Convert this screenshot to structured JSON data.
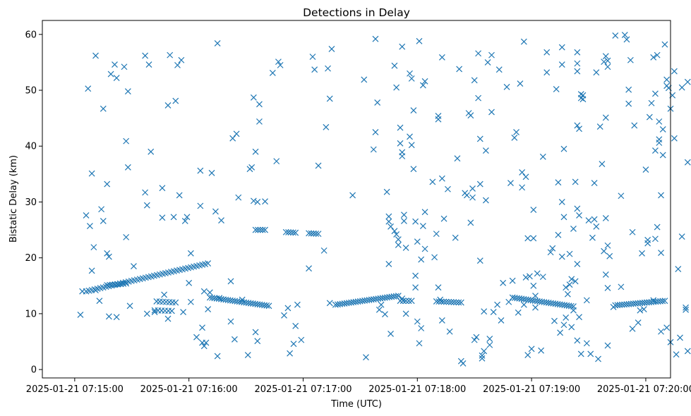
{
  "colors": {
    "series": "#1f77b4",
    "axis": "#000000",
    "background": "#ffffff"
  },
  "chart_data": {
    "type": "scatter",
    "marker": "x",
    "title": "Detections in Delay",
    "xlabel": "Time (UTC)",
    "ylabel": "Bistatic Delay (km)",
    "x_unit": "seconds after 2025-01-21 07:15:00",
    "xlim": [
      -17,
      313
    ],
    "ylim": [
      -1.5,
      62.5
    ],
    "xticks": [
      0,
      60,
      120,
      180,
      240,
      300
    ],
    "xtick_labels": [
      "2025-01-21 07:15:00",
      "2025-01-21 07:16:00",
      "2025-01-21 07:17:00",
      "2025-01-21 07:18:00",
      "2025-01-21 07:19:00",
      "2025-01-21 07:20:00"
    ],
    "yticks": [
      0,
      10,
      20,
      30,
      40,
      50,
      60
    ],
    "ytick_labels": [
      "0",
      "10",
      "20",
      "30",
      "40",
      "50",
      "60"
    ],
    "grid": false,
    "tracks": [
      {
        "t_start": 6,
        "t_end": 70,
        "d_start": 14.0,
        "d_end": 19.0,
        "step": 1.5
      },
      {
        "t_start": 71,
        "t_end": 102,
        "d_start": 12.9,
        "d_end": 11.4,
        "step": 1.2
      },
      {
        "t_start": 95,
        "t_end": 100,
        "d_start": 25.0,
        "d_end": 25.0,
        "step": 1.4
      },
      {
        "t_start": 111,
        "t_end": 116,
        "d_start": 24.6,
        "d_end": 24.5,
        "step": 1.4
      },
      {
        "t_start": 123,
        "t_end": 128,
        "d_start": 24.4,
        "d_end": 24.3,
        "step": 1.4
      },
      {
        "t_start": 137,
        "t_end": 170,
        "d_start": 11.6,
        "d_end": 13.2,
        "step": 1.2
      },
      {
        "t_start": 171,
        "t_end": 177,
        "d_start": 12.3,
        "d_end": 12.3,
        "step": 1.5
      },
      {
        "t_start": 190,
        "t_end": 203,
        "d_start": 12.2,
        "d_end": 12.0,
        "step": 1.3
      },
      {
        "t_start": 230,
        "t_end": 262,
        "d_start": 12.9,
        "d_end": 11.3,
        "step": 1.2
      },
      {
        "t_start": 284,
        "t_end": 310,
        "d_start": 11.5,
        "d_end": 12.3,
        "step": 1.2
      },
      {
        "t_start": 17,
        "t_end": 27,
        "d_start": 15.1,
        "d_end": 15.4,
        "step": 1.5
      },
      {
        "t_start": 43,
        "t_end": 53,
        "d_start": 12.2,
        "d_end": 12.0,
        "step": 1.6
      },
      {
        "t_start": 42,
        "t_end": 51,
        "d_start": 10.6,
        "d_end": 10.5,
        "step": 1.8
      }
    ],
    "points": [
      [
        3,
        9.8
      ],
      [
        4,
        14.0
      ],
      [
        6,
        27.6
      ],
      [
        7,
        50.3
      ],
      [
        8,
        25.7
      ],
      [
        9,
        35.1
      ],
      [
        9,
        17.7
      ],
      [
        10,
        21.9
      ],
      [
        11,
        56.2
      ],
      [
        11,
        14.2
      ],
      [
        13,
        12.3
      ],
      [
        14,
        28.7
      ],
      [
        15,
        46.7
      ],
      [
        15,
        26.6
      ],
      [
        17,
        33.2
      ],
      [
        17,
        20.8
      ],
      [
        18,
        20.2
      ],
      [
        18,
        9.5
      ],
      [
        19,
        52.9
      ],
      [
        21,
        54.6
      ],
      [
        22,
        52.2
      ],
      [
        22,
        9.4
      ],
      [
        26,
        54.2
      ],
      [
        27,
        23.7
      ],
      [
        27,
        40.9
      ],
      [
        28,
        49.8
      ],
      [
        28,
        36.2
      ],
      [
        29,
        11.4
      ],
      [
        31,
        18.5
      ],
      [
        37,
        56.2
      ],
      [
        37,
        31.7
      ],
      [
        38,
        29.4
      ],
      [
        38,
        10.0
      ],
      [
        39,
        54.6
      ],
      [
        40,
        39.0
      ],
      [
        42,
        10.3
      ],
      [
        46,
        27.2
      ],
      [
        46,
        32.5
      ],
      [
        47,
        13.4
      ],
      [
        49,
        47.3
      ],
      [
        50,
        56.3
      ],
      [
        49,
        9.1
      ],
      [
        52,
        27.3
      ],
      [
        53,
        48.1
      ],
      [
        54,
        54.5
      ],
      [
        55,
        31.2
      ],
      [
        56,
        55.4
      ],
      [
        57,
        10.3
      ],
      [
        58,
        26.6
      ],
      [
        59,
        27.3
      ],
      [
        60,
        15.5
      ],
      [
        61,
        20.8
      ],
      [
        61,
        12.1
      ],
      [
        64,
        5.8
      ],
      [
        66,
        35.6
      ],
      [
        66,
        29.3
      ],
      [
        67,
        7.5
      ],
      [
        67,
        4.8
      ],
      [
        68,
        4.2
      ],
      [
        68,
        14.0
      ],
      [
        69,
        4.8
      ],
      [
        70,
        10.8
      ],
      [
        71,
        13.8
      ],
      [
        72,
        35.2
      ],
      [
        74,
        28.3
      ],
      [
        75,
        2.4
      ],
      [
        75,
        58.4
      ],
      [
        76,
        12.8
      ],
      [
        77,
        26.7
      ],
      [
        82,
        8.6
      ],
      [
        82,
        15.8
      ],
      [
        83,
        41.4
      ],
      [
        84,
        5.4
      ],
      [
        85,
        42.2
      ],
      [
        86,
        30.8
      ],
      [
        88,
        12.5
      ],
      [
        91,
        2.6
      ],
      [
        92,
        35.9
      ],
      [
        93,
        36.2
      ],
      [
        94,
        48.7
      ],
      [
        94,
        30.2
      ],
      [
        95,
        39.0
      ],
      [
        95,
        6.7
      ],
      [
        96,
        30.0
      ],
      [
        96,
        5.1
      ],
      [
        97,
        44.4
      ],
      [
        97,
        47.5
      ],
      [
        100,
        30.1
      ],
      [
        104,
        53.1
      ],
      [
        106,
        37.3
      ],
      [
        107,
        55.1
      ],
      [
        108,
        54.5
      ],
      [
        110,
        9.7
      ],
      [
        112,
        11.0
      ],
      [
        113,
        2.9
      ],
      [
        115,
        4.6
      ],
      [
        116,
        7.8
      ],
      [
        117,
        11.6
      ],
      [
        119,
        5.3
      ],
      [
        123,
        18.1
      ],
      [
        125,
        56.0
      ],
      [
        126,
        53.7
      ],
      [
        128,
        36.5
      ],
      [
        131,
        21.3
      ],
      [
        132,
        43.4
      ],
      [
        133,
        53.9
      ],
      [
        134,
        11.9
      ],
      [
        134,
        48.5
      ],
      [
        135,
        57.4
      ],
      [
        146,
        31.2
      ],
      [
        152,
        51.9
      ],
      [
        153,
        2.2
      ],
      [
        157,
        39.4
      ],
      [
        158,
        42.5
      ],
      [
        158,
        59.2
      ],
      [
        159,
        47.8
      ],
      [
        160,
        10.7
      ],
      [
        161,
        11.6
      ],
      [
        163,
        9.9
      ],
      [
        164,
        31.8
      ],
      [
        165,
        27.4
      ],
      [
        165,
        26.5
      ],
      [
        166,
        25.6
      ],
      [
        165,
        18.9
      ],
      [
        166,
        6.4
      ],
      [
        168,
        54.4
      ],
      [
        168,
        24.8
      ],
      [
        169,
        50.5
      ],
      [
        169,
        24.2
      ],
      [
        170,
        23.3
      ],
      [
        170,
        22.3
      ],
      [
        171,
        43.3
      ],
      [
        171,
        40.5
      ],
      [
        172,
        57.8
      ],
      [
        172,
        38.9
      ],
      [
        172,
        38.2
      ],
      [
        172,
        12.7
      ],
      [
        173,
        27.7
      ],
      [
        173,
        26.6
      ],
      [
        174,
        21.8
      ],
      [
        174,
        10.0
      ],
      [
        176,
        41.7
      ],
      [
        176,
        53.0
      ],
      [
        177,
        52.1
      ],
      [
        177,
        40.2
      ],
      [
        178,
        35.9
      ],
      [
        178,
        46.4
      ],
      [
        179,
        16.8
      ],
      [
        179,
        14.7
      ],
      [
        179,
        26.5
      ],
      [
        180,
        22.9
      ],
      [
        180,
        8.6
      ],
      [
        181,
        58.8
      ],
      [
        181,
        4.7
      ],
      [
        182,
        7.4
      ],
      [
        182,
        19.7
      ],
      [
        183,
        25.7
      ],
      [
        183,
        50.9
      ],
      [
        184,
        51.6
      ],
      [
        184,
        28.2
      ],
      [
        184,
        21.6
      ],
      [
        188,
        33.6
      ],
      [
        189,
        20.1
      ],
      [
        190,
        24.3
      ],
      [
        191,
        45.4
      ],
      [
        191,
        44.8
      ],
      [
        191,
        14.7
      ],
      [
        192,
        12.5
      ],
      [
        193,
        55.9
      ],
      [
        193,
        8.8
      ],
      [
        193,
        34.2
      ],
      [
        194,
        27.0
      ],
      [
        196,
        32.3
      ],
      [
        197,
        6.8
      ],
      [
        200,
        23.6
      ],
      [
        201,
        37.8
      ],
      [
        202,
        53.8
      ],
      [
        203,
        1.5
      ],
      [
        204,
        1.1
      ],
      [
        205,
        31.6
      ],
      [
        206,
        31.2
      ],
      [
        207,
        45.9
      ],
      [
        208,
        26.3
      ],
      [
        208,
        45.5
      ],
      [
        209,
        32.4
      ],
      [
        209,
        30.8
      ],
      [
        210,
        51.8
      ],
      [
        210,
        5.3
      ],
      [
        211,
        5.8
      ],
      [
        212,
        48.6
      ],
      [
        212,
        56.6
      ],
      [
        213,
        41.3
      ],
      [
        213,
        33.2
      ],
      [
        213,
        19.5
      ],
      [
        214,
        2.5
      ],
      [
        214,
        2.0
      ],
      [
        215,
        3.3
      ],
      [
        215,
        10.4
      ],
      [
        216,
        39.2
      ],
      [
        216,
        30.3
      ],
      [
        217,
        55.0
      ],
      [
        218,
        5.5
      ],
      [
        218,
        4.4
      ],
      [
        219,
        56.3
      ],
      [
        219,
        46.1
      ],
      [
        220,
        10.3
      ],
      [
        222,
        11.6
      ],
      [
        223,
        53.7
      ],
      [
        224,
        8.8
      ],
      [
        225,
        15.5
      ],
      [
        227,
        50.6
      ],
      [
        228,
        12.1
      ],
      [
        229,
        33.4
      ],
      [
        230,
        15.9
      ],
      [
        231,
        41.5
      ],
      [
        232,
        42.5
      ],
      [
        233,
        10.2
      ],
      [
        234,
        51.2
      ],
      [
        235,
        32.6
      ],
      [
        235,
        35.3
      ],
      [
        236,
        58.7
      ],
      [
        236,
        11.6
      ],
      [
        237,
        34.5
      ],
      [
        237,
        16.5
      ],
      [
        238,
        23.5
      ],
      [
        238,
        2.6
      ],
      [
        239,
        16.7
      ],
      [
        240,
        3.7
      ],
      [
        241,
        28.6
      ],
      [
        241,
        15.0
      ],
      [
        241,
        23.5
      ],
      [
        242,
        13.2
      ],
      [
        242,
        11.1
      ],
      [
        243,
        17.2
      ],
      [
        245,
        3.4
      ],
      [
        246,
        38.1
      ],
      [
        246,
        16.6
      ],
      [
        248,
        56.8
      ],
      [
        248,
        53.2
      ],
      [
        250,
        21.0
      ],
      [
        251,
        21.7
      ],
      [
        252,
        8.7
      ],
      [
        253,
        50.2
      ],
      [
        254,
        24.1
      ],
      [
        254,
        33.5
      ],
      [
        255,
        6.6
      ],
      [
        256,
        57.7
      ],
      [
        256,
        54.6
      ],
      [
        256,
        30.0
      ],
      [
        256,
        20.2
      ],
      [
        257,
        8.0
      ],
      [
        257,
        39.5
      ],
      [
        257,
        27.3
      ],
      [
        258,
        14.7
      ],
      [
        258,
        9.3
      ],
      [
        259,
        13.5
      ],
      [
        260,
        15.2
      ],
      [
        260,
        20.7
      ],
      [
        261,
        16.2
      ],
      [
        261,
        7.6
      ],
      [
        262,
        10.6
      ],
      [
        262,
        25.2
      ],
      [
        263,
        33.6
      ],
      [
        263,
        15.8
      ],
      [
        264,
        56.8
      ],
      [
        264,
        54.8
      ],
      [
        264,
        53.4
      ],
      [
        264,
        43.7
      ],
      [
        264,
        28.8
      ],
      [
        264,
        18.9
      ],
      [
        264,
        5.2
      ],
      [
        265,
        43.1
      ],
      [
        265,
        9.4
      ],
      [
        265,
        27.6
      ],
      [
        266,
        49.3
      ],
      [
        266,
        48.6
      ],
      [
        266,
        2.8
      ],
      [
        267,
        48.4
      ],
      [
        267,
        49.1
      ],
      [
        269,
        12.4
      ],
      [
        269,
        4.7
      ],
      [
        270,
        26.7
      ],
      [
        271,
        2.8
      ],
      [
        272,
        23.6
      ],
      [
        273,
        26.9
      ],
      [
        273,
        33.4
      ],
      [
        274,
        53.2
      ],
      [
        274,
        25.6
      ],
      [
        275,
        1.9
      ],
      [
        276,
        43.5
      ],
      [
        277,
        36.8
      ],
      [
        278,
        55.1
      ],
      [
        278,
        21.2
      ],
      [
        279,
        56.1
      ],
      [
        279,
        45.1
      ],
      [
        279,
        27.1
      ],
      [
        279,
        17.0
      ],
      [
        280,
        14.6
      ],
      [
        280,
        22.2
      ],
      [
        280,
        55.3
      ],
      [
        280,
        54.2
      ],
      [
        280,
        4.3
      ],
      [
        281,
        20.3
      ],
      [
        283,
        11.2
      ],
      [
        284,
        59.8
      ],
      [
        287,
        31.1
      ],
      [
        287,
        14.8
      ],
      [
        289,
        59.9
      ],
      [
        290,
        59.1
      ],
      [
        291,
        50.1
      ],
      [
        291,
        47.6
      ],
      [
        292,
        55.4
      ],
      [
        293,
        24.6
      ],
      [
        293,
        7.3
      ],
      [
        294,
        43.7
      ],
      [
        296,
        8.4
      ],
      [
        297,
        10.6
      ],
      [
        298,
        20.8
      ],
      [
        299,
        10.8
      ],
      [
        300,
        35.8
      ],
      [
        301,
        23.2
      ],
      [
        301,
        22.6
      ],
      [
        302,
        45.2
      ],
      [
        303,
        47.7
      ],
      [
        304,
        55.9
      ],
      [
        304,
        12.4
      ],
      [
        305,
        49.4
      ],
      [
        305,
        39.2
      ],
      [
        305,
        23.4
      ],
      [
        306,
        25.5
      ],
      [
        306,
        56.3
      ],
      [
        307,
        41.2
      ],
      [
        307,
        44.4
      ],
      [
        307,
        40.6
      ],
      [
        308,
        20.9
      ],
      [
        308,
        6.8
      ],
      [
        308,
        31.2
      ],
      [
        309,
        43.0
      ],
      [
        309,
        38.4
      ],
      [
        310,
        58.2
      ],
      [
        311,
        51.9
      ],
      [
        311,
        50.8
      ],
      [
        311,
        7.5
      ],
      [
        312,
        50.4
      ],
      [
        313,
        46.7
      ],
      [
        313,
        4.9
      ],
      [
        314,
        49.1
      ],
      [
        315,
        53.4
      ],
      [
        315,
        41.4
      ],
      [
        316,
        2.7
      ],
      [
        317,
        18.0
      ],
      [
        318,
        5.7
      ],
      [
        319,
        50.5
      ],
      [
        319,
        23.8
      ],
      [
        321,
        10.7
      ],
      [
        321,
        11.1
      ],
      [
        322,
        51.5
      ],
      [
        322,
        37.1
      ],
      [
        322,
        3.3
      ]
    ]
  }
}
